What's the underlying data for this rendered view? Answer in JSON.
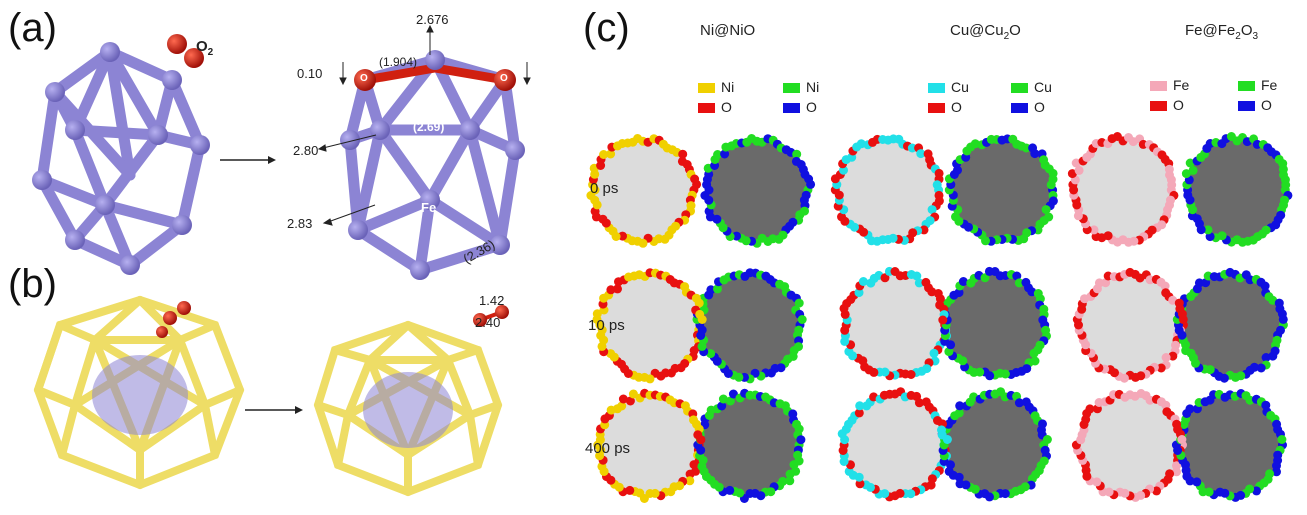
{
  "panels": {
    "a": {
      "label": "(a)",
      "o2_label": "O",
      "o2_sub": "2",
      "annotations": {
        "top": "2.676",
        "left_top": "0.10",
        "bond": "(1.904)",
        "center": "(2.69)",
        "mid_left": "2.80",
        "bottom_left": "2.83",
        "fe": "Fe",
        "bottom_right": "(2.36)",
        "o_left": "O",
        "o_right": "O"
      }
    },
    "b": {
      "label": "(b)",
      "annotations": {
        "upper": "1.42",
        "lower": "2.40"
      }
    },
    "c": {
      "label": "(c)",
      "columns": [
        {
          "title": "Ni@NiO",
          "metal": "Ni",
          "legend_left": [
            {
              "text": "Ni",
              "color": "#f0d000"
            },
            {
              "text": "O",
              "color": "#e81010"
            }
          ],
          "legend_right": [
            {
              "text": "Ni",
              "color": "#22dd22"
            },
            {
              "text": "O",
              "color": "#1010e0"
            }
          ]
        },
        {
          "title": "Cu@Cu2O",
          "legend_left": [
            {
              "text": "Cu",
              "color": "#22e0e8"
            },
            {
              "text": "O",
              "color": "#e81010"
            }
          ],
          "legend_right": [
            {
              "text": "Cu",
              "color": "#22dd22"
            },
            {
              "text": "O",
              "color": "#1010e0"
            }
          ]
        },
        {
          "title": "Fe@Fe2O3",
          "legend_left": [
            {
              "text": "Fe",
              "color": "#f4a8b8"
            },
            {
              "text": "O",
              "color": "#e81010"
            }
          ],
          "legend_right": [
            {
              "text": "Fe",
              "color": "#22dd22"
            },
            {
              "text": "O",
              "color": "#1010e0"
            }
          ]
        }
      ],
      "times": [
        "0 ps",
        "10 ps",
        "400 ps"
      ]
    }
  },
  "colors": {
    "cluster_purple": "#8c84d4",
    "cluster_yellow": "#eedd66",
    "oxygen_red": "#d02010",
    "core_light": "#d8d8d8",
    "core_dark": "#6a6a6a"
  }
}
